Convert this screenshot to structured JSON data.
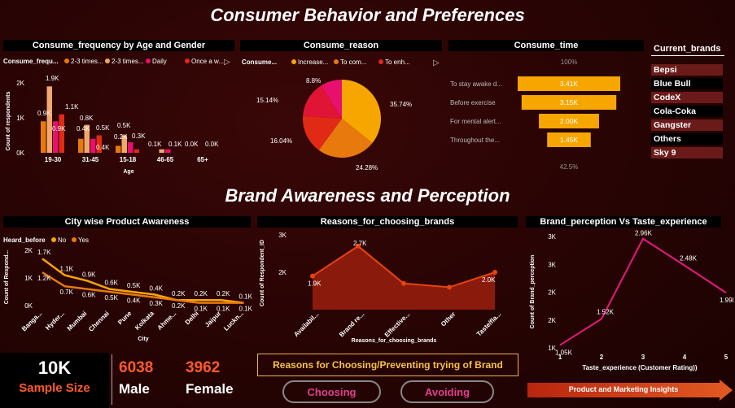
{
  "header": {
    "title": "Consumer Behavior and Preferences",
    "subtitle": "Brand Awareness and Perception"
  },
  "colors": {
    "c1": "#f7a600",
    "c2": "#e8790c",
    "c3": "#e02a15",
    "c4": "#e8106e",
    "c5": "#f0a86b",
    "magenta": "#e3197e"
  },
  "freq": {
    "title": "Consume_frequency by Age and Gender",
    "legend_title": "Consume_frequ...",
    "legend": [
      "2-3 times...",
      "2-3 times...",
      "Daily",
      "Once a w..."
    ],
    "ylabel": "Count of respondents",
    "xlabel": "Age",
    "yticks": [
      "2K",
      "1K",
      "0K"
    ]
  },
  "reason": {
    "title": "Consume_reason",
    "legend_title": "Consume...",
    "legend": [
      "Increase...",
      "To com...",
      "To enh..."
    ]
  },
  "time": {
    "title": "Consume_time",
    "top": "100%",
    "bottom": "42.5%"
  },
  "brands": {
    "title": "Current_brands",
    "items": [
      "Bepsi",
      "Blue Bull",
      "CodeX",
      "Cola-Coka",
      "Gangster",
      "Others",
      "Sky 9"
    ]
  },
  "city": {
    "title": "City wise Product Awareness",
    "legend_title": "Heard_before",
    "legend": [
      "No",
      "Yes"
    ],
    "ylabel": "Count of Respond...",
    "xlabel": "City",
    "yticks": [
      "2K",
      "1K",
      "0K"
    ]
  },
  "reasons_choose": {
    "title": "Reasons_for_choosing_brands",
    "ylabel": "Count of Respondent_ID",
    "xlabel": "Reasons_for_choosing_brands",
    "yticks": [
      "3K",
      "2K"
    ]
  },
  "perception": {
    "title": "Brand_perception Vs Taste_experience",
    "ylabel": "Count of Brand_perception",
    "xlabel": "Taste_experience (Customer Rating))",
    "yticks": [
      "3K",
      "3K",
      "2K",
      "2K",
      "1K"
    ]
  },
  "kpi": {
    "sample_value": "10K",
    "sample_label": "Sample Size",
    "male_value": "6038",
    "male_label": "Male",
    "female_value": "3962",
    "female_label": "Female"
  },
  "buttons": {
    "reasons_title": "Reasons for Choosing/Preventing trying of Brand",
    "choosing": "Choosing",
    "avoiding": "Avoiding",
    "insights": "Product and Marketing Insights"
  },
  "chart_data": [
    {
      "type": "bar",
      "title": "Consume_frequency by Age and Gender",
      "categories": [
        "19-30",
        "31-45",
        "15-18",
        "46-65",
        "65+"
      ],
      "series": [
        {
          "name": "2-3 times...",
          "values": [
            900,
            400,
            200,
            0,
            0
          ]
        },
        {
          "name": "2-3 times...",
          "values": [
            1900,
            800,
            500,
            100,
            0
          ]
        },
        {
          "name": "Daily",
          "values": [
            900,
            400,
            300,
            100,
            0
          ]
        },
        {
          "name": "Once a w...",
          "values": [
            1100,
            500,
            100,
            0,
            0
          ]
        }
      ],
      "data_labels": [
        "1.9K",
        "0.9K",
        "0.9K",
        "1.1K",
        "0.4K",
        "0.8K",
        "0.4K",
        "0.5K",
        "0.5K",
        "0.2K",
        "0.3K",
        "0.1K",
        "0.1K",
        "0.0K",
        "0.0K"
      ],
      "xlabel": "Age",
      "ylabel": "Count of respondents",
      "ylim": [
        0,
        2000
      ]
    },
    {
      "type": "pie",
      "title": "Consume_reason",
      "values": [
        35.74,
        24.28,
        16.04,
        15.14,
        8.8
      ],
      "labels": [
        "35.74%",
        "24.28%",
        "16.04%",
        "15.14%",
        "8.8%"
      ]
    },
    {
      "type": "bar",
      "title": "Consume_time",
      "categories": [
        "To stay awake d...",
        "Before exercise",
        "For mental alert...",
        "Throughout the..."
      ],
      "values": [
        3410,
        3150,
        2000,
        1450
      ],
      "labels": [
        "3.41K",
        "3.15K",
        "2.00K",
        "1.45K"
      ]
    },
    {
      "type": "line",
      "title": "City wise Product Awareness",
      "categories": [
        "Banga...",
        "Hyder...",
        "Mumbai",
        "Chennai",
        "Pune",
        "Kolkata",
        "Ahme...",
        "Delhi",
        "Jaipur",
        "Luckn..."
      ],
      "series": [
        {
          "name": "No",
          "values": [
            1700,
            1100,
            900,
            600,
            500,
            400,
            200,
            200,
            200,
            100
          ]
        },
        {
          "name": "Yes",
          "values": [
            1200,
            700,
            600,
            500,
            400,
            300,
            200,
            100,
            100,
            100
          ]
        }
      ],
      "labels": [
        "1.7K",
        "1.1K",
        "0.9K",
        "0.6K",
        "0.5K",
        "0.4K",
        "0.2K",
        "0.2K",
        "0.2K",
        "0.1K",
        "1.2K",
        "0.7K",
        "0.6K",
        "0.5K",
        "0.4K",
        "0.3K",
        "0.2K",
        "0.1K",
        "0.1K",
        "0.1K"
      ],
      "xlabel": "City",
      "ylabel": "Count of Respond...",
      "ylim": [
        0,
        2000
      ]
    },
    {
      "type": "area",
      "title": "Reasons_for_choosing_brands",
      "categories": [
        "Availabil...",
        "Brand re...",
        "Effective...",
        "Other",
        "Taste/fla..."
      ],
      "values": [
        1900,
        2700,
        1700,
        1600,
        2000
      ],
      "labels": [
        "1.9K",
        "2.7K",
        "",
        "",
        "2.0K"
      ],
      "ylim": [
        1000,
        3000
      ]
    },
    {
      "type": "line",
      "title": "Brand_perception Vs Taste_experience",
      "x": [
        1,
        2,
        3,
        4,
        5
      ],
      "values": [
        1050,
        1520,
        2960,
        2480,
        1990
      ],
      "labels": [
        "1.05K",
        "1.52K",
        "2.96K",
        "2.48K",
        "1.99K"
      ],
      "xlabel": "Taste_experience (Customer Rating))",
      "ylabel": "Count of Brand_perception"
    }
  ]
}
